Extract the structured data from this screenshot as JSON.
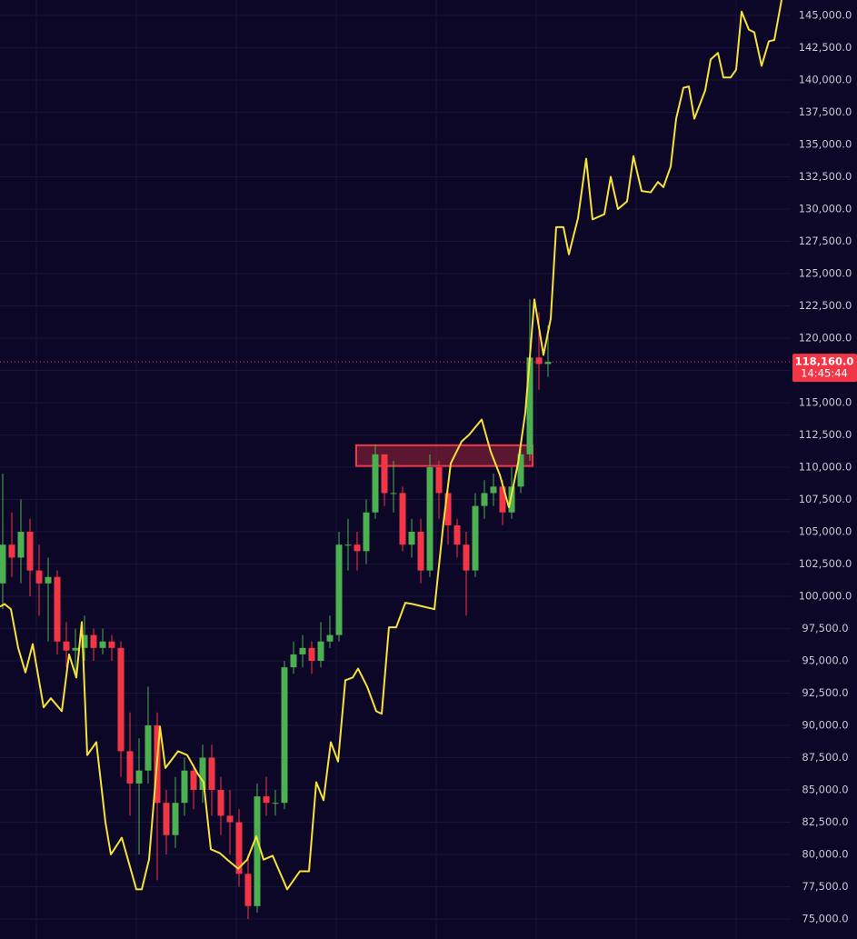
{
  "chart_data": {
    "type": "candlestick",
    "ylim": [
      73450,
      146200
    ],
    "xlim": [
      -0.3,
      86.7
    ],
    "yticks": [
      {
        "value": 75000,
        "label": "75,000.0"
      },
      {
        "value": 77500,
        "label": "77,500.0"
      },
      {
        "value": 80000,
        "label": "80,000.0"
      },
      {
        "value": 82500,
        "label": "82,500.0"
      },
      {
        "value": 85000,
        "label": "85,000.0"
      },
      {
        "value": 87500,
        "label": "87,500.0"
      },
      {
        "value": 90000,
        "label": "90,000.0"
      },
      {
        "value": 92500,
        "label": "92,500.0"
      },
      {
        "value": 95000,
        "label": "95,000.0"
      },
      {
        "value": 97500,
        "label": "97,500.0"
      },
      {
        "value": 100000,
        "label": "100,000.0"
      },
      {
        "value": 102500,
        "label": "102,500.0"
      },
      {
        "value": 105000,
        "label": "105,000.0"
      },
      {
        "value": 107500,
        "label": "107,500.0"
      },
      {
        "value": 110000,
        "label": "110,000.0"
      },
      {
        "value": 112500,
        "label": "112,500.0"
      },
      {
        "value": 115000,
        "label": "115,000.0"
      },
      {
        "value": 117500,
        "label": "117,500.0"
      },
      {
        "value": 120000,
        "label": "120,000.0"
      },
      {
        "value": 122500,
        "label": "122,500.0"
      },
      {
        "value": 125000,
        "label": "125,000.0"
      },
      {
        "value": 127500,
        "label": "127,500.0"
      },
      {
        "value": 130000,
        "label": "130,000.0"
      },
      {
        "value": 132500,
        "label": "132,500.0"
      },
      {
        "value": 135000,
        "label": "135,000.0"
      },
      {
        "value": 137500,
        "label": "137,500.0"
      },
      {
        "value": 140000,
        "label": "140,000.0"
      },
      {
        "value": 142500,
        "label": "142,500.0"
      },
      {
        "value": 145000,
        "label": "145,000.0"
      }
    ],
    "grid": true,
    "up_color": "#4caf50",
    "down_color": "#f23645",
    "open": [
      101000,
      104000,
      103000,
      105000,
      102000,
      101000,
      101500,
      96500,
      95800,
      96000,
      97000,
      96000,
      96500,
      96000,
      88000,
      85500,
      86500,
      90000,
      84000,
      81500,
      84000,
      86500,
      85000,
      87500,
      85000,
      83000,
      82500,
      78500,
      76000,
      84500,
      84000,
      84000,
      94500,
      95500,
      96000,
      95000,
      96500,
      97000,
      104000,
      104000,
      103500,
      106500,
      111000,
      108000,
      108000,
      104000,
      105000,
      102000,
      110000,
      108000,
      105500,
      104000,
      102000,
      107000,
      108000,
      108500,
      106500,
      108500,
      111000,
      118500,
      118000
    ],
    "high": [
      109500,
      106500,
      107500,
      106000,
      104000,
      103000,
      102000,
      98000,
      97500,
      98500,
      97500,
      97500,
      97000,
      96500,
      91000,
      89000,
      93000,
      91000,
      85000,
      86000,
      87500,
      87000,
      88500,
      88500,
      86000,
      85000,
      83500,
      80000,
      85500,
      86000,
      85000,
      95000,
      96500,
      97000,
      96500,
      98000,
      98500,
      105000,
      106000,
      105000,
      107500,
      111800,
      111000,
      110500,
      108500,
      106000,
      106000,
      111000,
      110500,
      109000,
      106000,
      105000,
      108000,
      109000,
      109500,
      109000,
      110000,
      112000,
      123000,
      122000,
      121000
    ],
    "low": [
      99000,
      101500,
      101000,
      100000,
      98500,
      96500,
      95500,
      94500,
      94000,
      95000,
      95000,
      95500,
      95000,
      86000,
      83000,
      80000,
      85500,
      78000,
      80000,
      80500,
      83000,
      83500,
      84000,
      83000,
      81500,
      80000,
      77500,
      75000,
      75500,
      83000,
      83000,
      83500,
      94000,
      94500,
      94000,
      94500,
      96000,
      96500,
      102000,
      102000,
      102500,
      106000,
      107000,
      106500,
      103500,
      103000,
      101000,
      101500,
      106000,
      104000,
      103000,
      98500,
      101500,
      106000,
      107000,
      105500,
      106000,
      108000,
      110500,
      116000,
      117000
    ],
    "close": [
      104000,
      103000,
      105000,
      102000,
      101000,
      101500,
      96500,
      95800,
      96000,
      97000,
      96000,
      96500,
      96000,
      88000,
      85500,
      86500,
      90000,
      84000,
      81500,
      84000,
      86500,
      85000,
      87500,
      85000,
      83000,
      82500,
      78500,
      76000,
      84500,
      84000,
      84000,
      94500,
      95500,
      96000,
      95000,
      96500,
      97000,
      104000,
      104000,
      103500,
      106500,
      111000,
      108000,
      108000,
      104000,
      105000,
      102000,
      110000,
      108000,
      105500,
      104000,
      102000,
      107000,
      108000,
      108500,
      106500,
      108500,
      111000,
      118500,
      118000,
      118160
    ],
    "series": [
      {
        "color": "#f5e23a",
        "x": [
          -0.3,
          0.2,
          0.9,
          1.7,
          2.5,
          3.3,
          4.5,
          5.3,
          6.5,
          7.3,
          8.1,
          8.7,
          9.3,
          10.3,
          11.3,
          11.9,
          13.1,
          14.7,
          15.3,
          16.1,
          17.3,
          17.9,
          19.3,
          20.3,
          21.5,
          22.1,
          22.9,
          23.9,
          24.7,
          25.9,
          26.9,
          27.9,
          28.7,
          29.7,
          31.3,
          32.7,
          33.7,
          34.5,
          35.3,
          36.1,
          36.9,
          37.7,
          38.5,
          39.1,
          40.1,
          41.1,
          41.7,
          42.5,
          43.3,
          44.3,
          45.1,
          46.3,
          47.5,
          48.5,
          49.3,
          50.5,
          51.3,
          52.7,
          53.7,
          54.7,
          55.7,
          56.7,
          57.5,
          58.1,
          58.5,
          59.5,
          60.3,
          60.9,
          61.7,
          62.3,
          63.3,
          64.2,
          64.9,
          66.2,
          66.9,
          67.7,
          68.7,
          69.4,
          70.3,
          71.3,
          72.1,
          72.7,
          73.5,
          74.1,
          74.9,
          75.5,
          76.1,
          77.3,
          77.9,
          78.7,
          79.3,
          80.1,
          80.7,
          81.3,
          82.1,
          82.7,
          83.5,
          84.3,
          84.9,
          85.7
        ],
        "values": [
          99200,
          99400,
          99000,
          96000,
          94100,
          96300,
          91400,
          92100,
          91100,
          95500,
          93700,
          98000,
          87700,
          88700,
          82500,
          80000,
          81300,
          77300,
          77300,
          79600,
          89900,
          86700,
          88000,
          87700,
          86200,
          85600,
          80400,
          80100,
          79600,
          78900,
          79600,
          81400,
          79600,
          79900,
          77300,
          78700,
          78700,
          85600,
          84200,
          88700,
          87200,
          93500,
          93700,
          94400,
          93000,
          91100,
          90900,
          97600,
          97600,
          99500,
          99400,
          99200,
          99000,
          105700,
          110300,
          112000,
          112500,
          113700,
          111200,
          109400,
          106900,
          110300,
          114200,
          119400,
          123000,
          118700,
          121500,
          128600,
          128600,
          126500,
          129300,
          133900,
          129200,
          129600,
          132500,
          130000,
          130600,
          134100,
          131400,
          131300,
          132100,
          131700,
          133300,
          137000,
          139400,
          139500,
          137000,
          139200,
          141600,
          142100,
          140200,
          140200,
          140800,
          145300,
          143900,
          143700,
          141100,
          143000,
          143100,
          146200
        ]
      }
    ],
    "zone": {
      "x": [
        38.9,
        58.3
      ],
      "y": [
        110100,
        111700
      ],
      "color": "#f23645"
    },
    "last_price": {
      "value": 118160,
      "label": "118,160.0"
    },
    "countdown": "14:45:44"
  }
}
